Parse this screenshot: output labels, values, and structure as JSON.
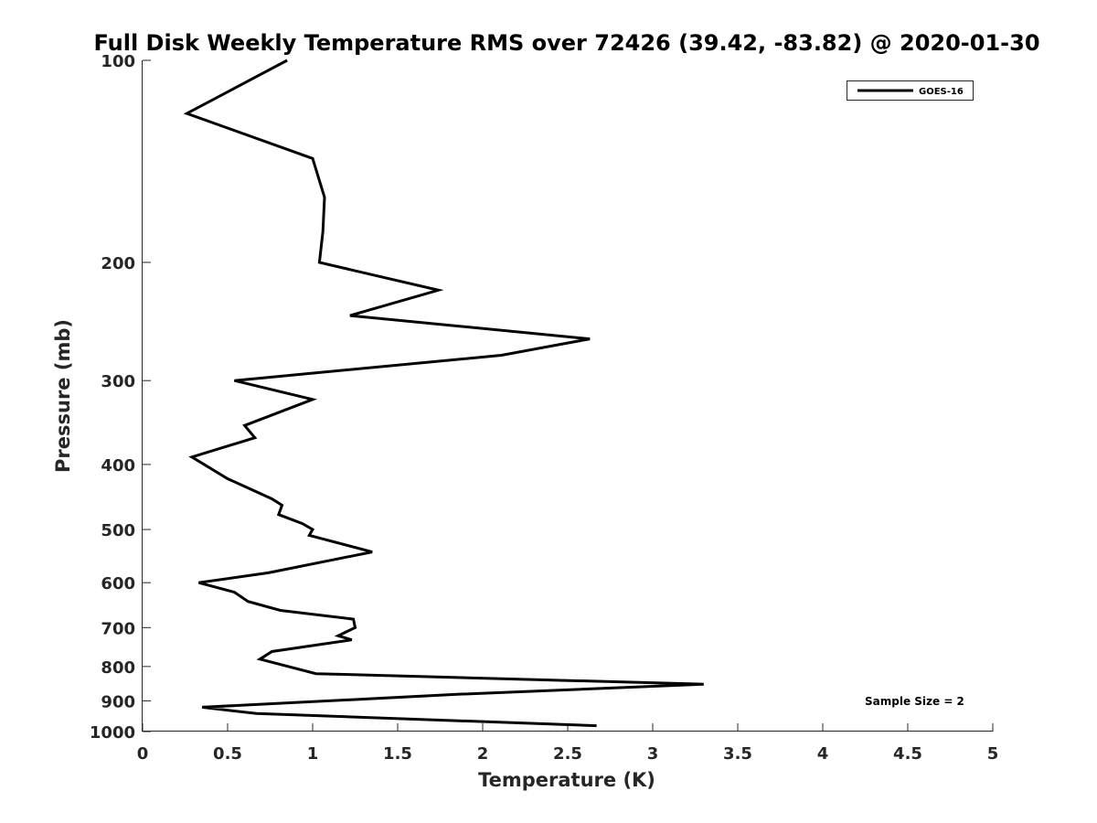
{
  "chart_data": {
    "type": "line",
    "title": "Full Disk Weekly Temperature RMS over 72426 (39.42, -83.82) @ 2020-01-30",
    "xlabel": "Temperature (K)",
    "ylabel": "Pressure (mb)",
    "xlim": [
      0,
      5
    ],
    "ylim": [
      100,
      1000
    ],
    "y_scale": "log",
    "y_reversed": true,
    "x_ticks": [
      "0",
      "0.5",
      "1",
      "1.5",
      "2",
      "2.5",
      "3",
      "3.5",
      "4",
      "4.5",
      "5"
    ],
    "y_ticks": [
      "100",
      "200",
      "300",
      "400",
      "500",
      "600",
      "700",
      "800",
      "900",
      "1000"
    ],
    "grid": false,
    "legend": {
      "placement": "top-right",
      "entries": [
        "GOES-16"
      ]
    },
    "annotation": "Sample Size = 2",
    "series": [
      {
        "name": "GOES-16",
        "color": "#000000",
        "points": [
          [
            0.85,
            100
          ],
          [
            0.26,
            120
          ],
          [
            1.0,
            140
          ],
          [
            1.07,
            160
          ],
          [
            1.06,
            180
          ],
          [
            1.04,
            200
          ],
          [
            1.74,
            220
          ],
          [
            1.22,
            240
          ],
          [
            2.63,
            260
          ],
          [
            2.11,
            275
          ],
          [
            0.54,
            300
          ],
          [
            1.0,
            320
          ],
          [
            0.6,
            350
          ],
          [
            0.66,
            365
          ],
          [
            0.29,
            390
          ],
          [
            0.5,
            420
          ],
          [
            0.76,
            450
          ],
          [
            0.82,
            460
          ],
          [
            0.8,
            475
          ],
          [
            0.94,
            490
          ],
          [
            1.0,
            500
          ],
          [
            0.98,
            510
          ],
          [
            1.35,
            540
          ],
          [
            0.74,
            580
          ],
          [
            0.33,
            600
          ],
          [
            0.54,
            620
          ],
          [
            0.62,
            640
          ],
          [
            0.81,
            660
          ],
          [
            1.24,
            680
          ],
          [
            1.25,
            700
          ],
          [
            1.15,
            720
          ],
          [
            1.23,
            730
          ],
          [
            0.76,
            760
          ],
          [
            0.69,
            780
          ],
          [
            1.02,
            820
          ],
          [
            3.3,
            850
          ],
          [
            1.85,
            880
          ],
          [
            0.35,
            920
          ],
          [
            0.67,
            940
          ],
          [
            2.67,
            980
          ]
        ]
      }
    ]
  }
}
